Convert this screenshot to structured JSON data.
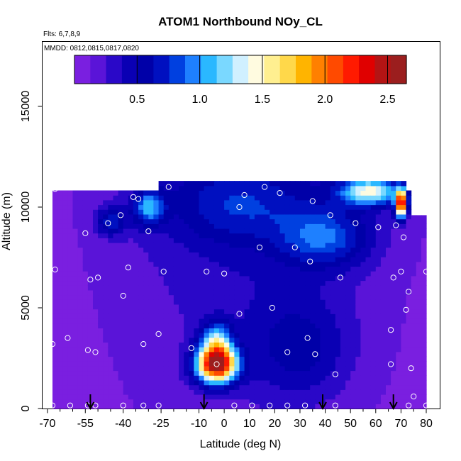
{
  "chart_data": {
    "type": "heatmap",
    "title": "ATOM1 Northbound NOy_CL",
    "subtitle_flights": "Flts: 6,7,8,9",
    "subtitle_dates": "MMDD: 0812,0815,0817,0820",
    "xlabel": "Latitude (deg N)",
    "ylabel": "Altitude (m)",
    "xlim": [
      -70,
      80
    ],
    "ylim": [
      0,
      18000
    ],
    "x_tick_values": [
      -70,
      -55,
      -40,
      -25,
      -10,
      0,
      10,
      20,
      30,
      40,
      50,
      60,
      70,
      80
    ],
    "x_tick_labels": [
      "-70",
      "-55",
      "-40",
      "-25",
      "-10",
      "0",
      "10",
      "20",
      "30",
      "40",
      "50",
      "60",
      "70",
      "80"
    ],
    "x_minor_ticks": [
      -65,
      -60,
      -50,
      -45,
      -35,
      -30,
      -20,
      -15,
      -5,
      5,
      15,
      25,
      35,
      45,
      55,
      65,
      75
    ],
    "y_tick_values": [
      0,
      5000,
      10000,
      15000
    ],
    "y_tick_labels": [
      "0",
      "5000",
      "10000",
      "15000"
    ],
    "colorbar": {
      "range": [
        0,
        2.65
      ],
      "tick_values": [
        0.5,
        1.0,
        1.5,
        2.0,
        2.5
      ],
      "tick_labels": [
        "0.5",
        "1.0",
        "1.5",
        "2.0",
        "2.5"
      ],
      "colors": [
        "#7a1fe0",
        "#5a14d8",
        "#2a08c8",
        "#0a00b4",
        "#0000a8",
        "#0010c0",
        "#0040e0",
        "#1e80ff",
        "#2ab8ff",
        "#7ad8ff",
        "#d0f0ff",
        "#fffbe0",
        "#ffef90",
        "#ffd84a",
        "#ffb400",
        "#ff8000",
        "#ff4a00",
        "#ff1a00",
        "#e00000",
        "#b41414",
        "#9b1e1e"
      ]
    },
    "background_value": 0.05,
    "field_columns_lat": [
      -68,
      80
    ],
    "field_blobs": [
      {
        "lat": -3,
        "alt": 2200,
        "w_lat": 8,
        "w_alt": 900,
        "value": 2.35
      },
      {
        "lat": -3,
        "alt": 3400,
        "w_lat": 6,
        "w_alt": 900,
        "value": 0.9
      },
      {
        "lat": 70,
        "alt": 10200,
        "w_lat": 2.2,
        "w_alt": 700,
        "value": 2.2
      },
      {
        "lat": 58,
        "alt": 10800,
        "w_lat": 12,
        "w_alt": 700,
        "value": 1.2
      },
      {
        "lat": -30,
        "alt": 10000,
        "w_lat": 6,
        "w_alt": 900,
        "value": 0.75
      },
      {
        "lat": 40,
        "alt": 8500,
        "w_lat": 18,
        "w_alt": 1500,
        "value": 0.6
      },
      {
        "lat": -45,
        "alt": 9300,
        "w_lat": 6,
        "w_alt": 700,
        "value": 0.55
      },
      {
        "lat": 5,
        "alt": 10000,
        "w_lat": 28,
        "w_alt": 1800,
        "value": 0.35
      },
      {
        "lat": 30,
        "alt": 3000,
        "w_lat": 20,
        "w_alt": 2500,
        "value": 0.35
      }
    ],
    "sample_points": [
      {
        "lat": -67,
        "alt": 10900
      },
      {
        "lat": -67,
        "alt": 6900
      },
      {
        "lat": -68,
        "alt": 3200
      },
      {
        "lat": -68,
        "alt": 150
      },
      {
        "lat": -61,
        "alt": 150
      },
      {
        "lat": -62,
        "alt": 3500
      },
      {
        "lat": -55,
        "alt": 8700
      },
      {
        "lat": -54,
        "alt": 150
      },
      {
        "lat": -54,
        "alt": 2900
      },
      {
        "lat": -53,
        "alt": 6400
      },
      {
        "lat": -50,
        "alt": 6500
      },
      {
        "lat": -51,
        "alt": 2800
      },
      {
        "lat": -51,
        "alt": 150
      },
      {
        "lat": -46,
        "alt": 9200
      },
      {
        "lat": -41,
        "alt": 9600
      },
      {
        "lat": -40,
        "alt": 5600
      },
      {
        "lat": -38,
        "alt": 7000
      },
      {
        "lat": -36,
        "alt": 10500
      },
      {
        "lat": -34,
        "alt": 10400
      },
      {
        "lat": -40,
        "alt": 150
      },
      {
        "lat": -32,
        "alt": 150
      },
      {
        "lat": -32,
        "alt": 3200
      },
      {
        "lat": -30,
        "alt": 8800
      },
      {
        "lat": -28,
        "alt": 11000
      },
      {
        "lat": -26,
        "alt": 150
      },
      {
        "lat": -26,
        "alt": 3700
      },
      {
        "lat": -24,
        "alt": 6800
      },
      {
        "lat": -22,
        "alt": 11000
      },
      {
        "lat": -13,
        "alt": 3000
      },
      {
        "lat": -7,
        "alt": 6800
      },
      {
        "lat": -3,
        "alt": 2200
      },
      {
        "lat": 0,
        "alt": 6700
      },
      {
        "lat": 6,
        "alt": 10000
      },
      {
        "lat": 6,
        "alt": 4700
      },
      {
        "lat": 4,
        "alt": 150
      },
      {
        "lat": 8,
        "alt": 10600
      },
      {
        "lat": 11,
        "alt": 150
      },
      {
        "lat": 14,
        "alt": 8000
      },
      {
        "lat": 16,
        "alt": 11000
      },
      {
        "lat": 18,
        "alt": 150
      },
      {
        "lat": 19,
        "alt": 5000
      },
      {
        "lat": 22,
        "alt": 10700
      },
      {
        "lat": 25,
        "alt": 2800
      },
      {
        "lat": 25,
        "alt": 150
      },
      {
        "lat": 28,
        "alt": 8000
      },
      {
        "lat": 32,
        "alt": 150
      },
      {
        "lat": 33,
        "alt": 3500
      },
      {
        "lat": 34,
        "alt": 7300
      },
      {
        "lat": 35,
        "alt": 10300
      },
      {
        "lat": 36,
        "alt": 2700
      },
      {
        "lat": 42,
        "alt": 9600
      },
      {
        "lat": 44,
        "alt": 1700
      },
      {
        "lat": 44,
        "alt": 150
      },
      {
        "lat": 46,
        "alt": 6500
      },
      {
        "lat": 52,
        "alt": 9200
      },
      {
        "lat": 61,
        "alt": 9000
      },
      {
        "lat": 66,
        "alt": 3900
      },
      {
        "lat": 66,
        "alt": 2200
      },
      {
        "lat": 67,
        "alt": 6500
      },
      {
        "lat": 68,
        "alt": 9100
      },
      {
        "lat": 70,
        "alt": 6800
      },
      {
        "lat": 71,
        "alt": 8500
      },
      {
        "lat": 72,
        "alt": 4900
      },
      {
        "lat": 73,
        "alt": 5800
      },
      {
        "lat": 74,
        "alt": 2000
      },
      {
        "lat": 75,
        "alt": 600
      },
      {
        "lat": 73,
        "alt": 150
      },
      {
        "lat": 79,
        "alt": 9800
      },
      {
        "lat": 80,
        "alt": 6800
      },
      {
        "lat": 80,
        "alt": 150
      }
    ],
    "arrows_lat": [
      -53,
      -8,
      39,
      67
    ],
    "colors": {
      "point_outline": "#ffffff",
      "arrow": "#000000"
    }
  }
}
